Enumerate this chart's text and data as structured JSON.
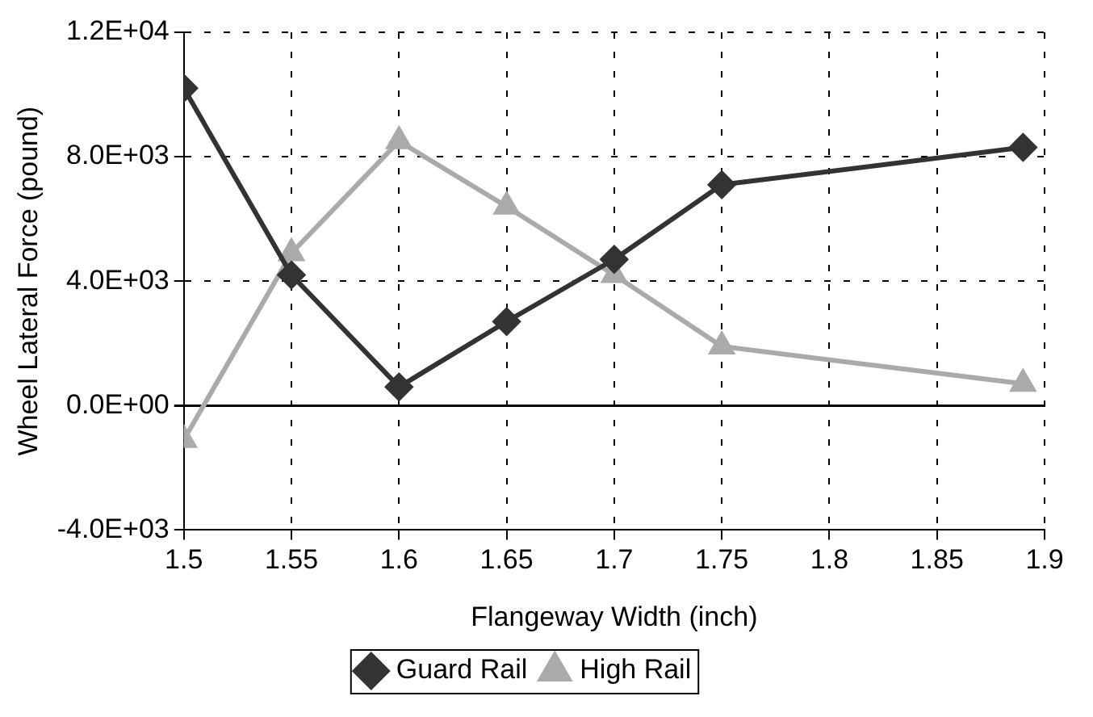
{
  "chart_data": {
    "type": "line",
    "xlabel": "Flangeway Width (inch)",
    "ylabel": "Wheel Lateral Force (pound)",
    "xlim": [
      1.5,
      1.9
    ],
    "xticks": [
      1.5,
      1.55,
      1.6,
      1.65,
      1.7,
      1.75,
      1.8,
      1.85,
      1.9
    ],
    "ylim": [
      -4000,
      12000
    ],
    "yticks": [
      {
        "value": -4000,
        "label": "-4.0E+03"
      },
      {
        "value": 0,
        "label": "0.0E+00"
      },
      {
        "value": 4000,
        "label": "4.0E+03"
      },
      {
        "value": 8000,
        "label": "8.0E+03"
      },
      {
        "value": 12000,
        "label": "1.2E+04"
      }
    ],
    "grid": true,
    "legend": "bottom",
    "line_style": "solid",
    "series": [
      {
        "name": "Guard Rail",
        "color": "#333333",
        "marker": "diamond",
        "x": [
          1.5,
          1.55,
          1.6,
          1.65,
          1.7,
          1.75,
          1.89
        ],
        "values": [
          10200,
          4200,
          600,
          2700,
          4700,
          7100,
          8300
        ]
      },
      {
        "name": "High Rail",
        "color": "#aaaaaa",
        "marker": "triangle",
        "x": [
          1.5,
          1.55,
          1.6,
          1.65,
          1.7,
          1.75,
          1.89
        ],
        "values": [
          -1100,
          4900,
          8500,
          6400,
          4200,
          1900,
          700
        ]
      }
    ]
  }
}
